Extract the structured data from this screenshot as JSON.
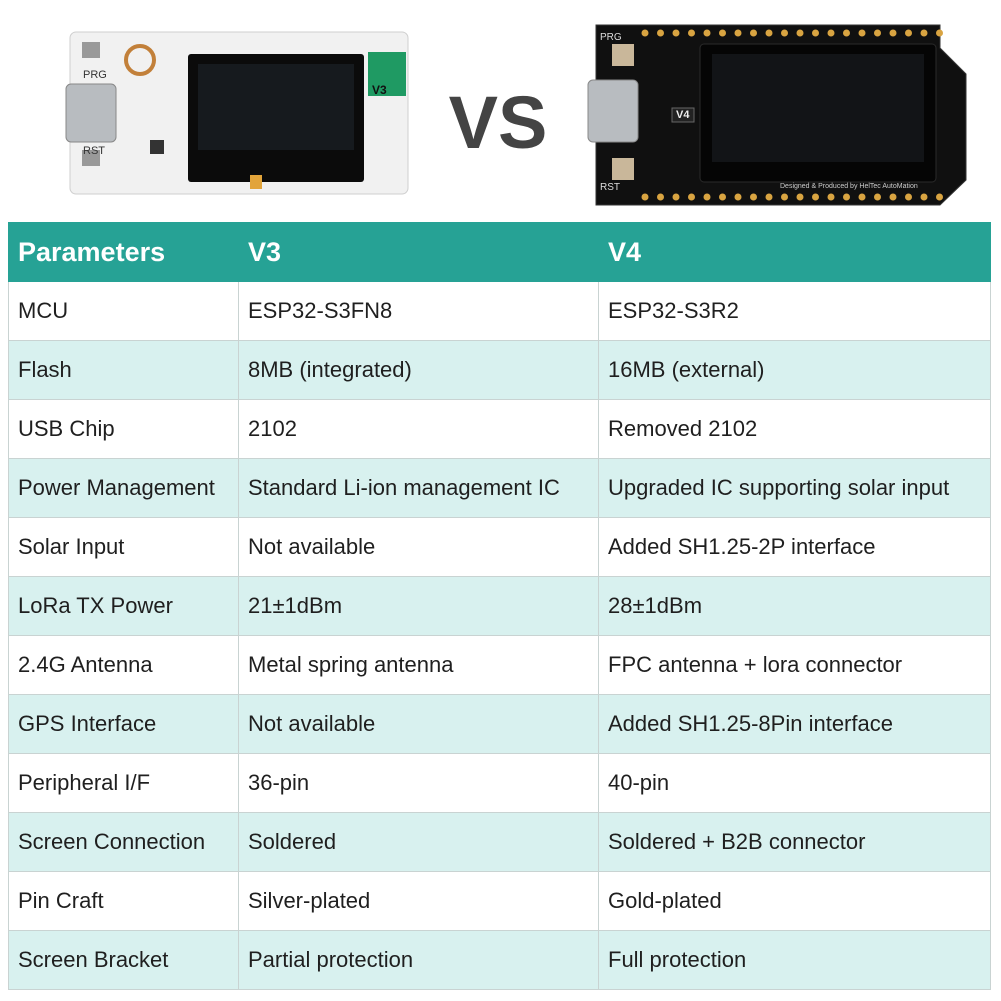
{
  "top": {
    "v3_board": {
      "prg": "PRG",
      "rst": "RST",
      "version": "V3"
    },
    "vs": "VS",
    "v4_board": {
      "prg": "PRG",
      "rst": "RST",
      "version": "V4",
      "maker": "Designed & Produced by HelTec AutoMation"
    }
  },
  "table": {
    "header": [
      "Parameters",
      "V3",
      "V4"
    ],
    "rows": [
      [
        "MCU",
        "ESP32-S3FN8",
        "ESP32-S3R2"
      ],
      [
        "Flash",
        "8MB (integrated)",
        "16MB (external)"
      ],
      [
        "USB Chip",
        "2102",
        "Removed 2102"
      ],
      [
        "Power Management",
        "Standard Li-ion management IC",
        "Upgraded IC supporting solar input"
      ],
      [
        "Solar Input",
        "Not available",
        "Added SH1.25-2P interface"
      ],
      [
        "LoRa TX Power",
        "21±1dBm",
        "28±1dBm"
      ],
      [
        "2.4G Antenna",
        "Metal spring antenna",
        "FPC antenna + lora  connector"
      ],
      [
        "GPS Interface",
        "Not available",
        "Added SH1.25-8Pin interface"
      ],
      [
        "Peripheral I/F",
        "36-pin",
        "40-pin"
      ],
      [
        "Screen Connection",
        "Soldered",
        "Soldered + B2B connector"
      ],
      [
        "Pin Craft",
        "Silver-plated",
        "Gold-plated"
      ],
      [
        "Screen Bracket",
        "Partial protection",
        "Full protection"
      ]
    ]
  }
}
